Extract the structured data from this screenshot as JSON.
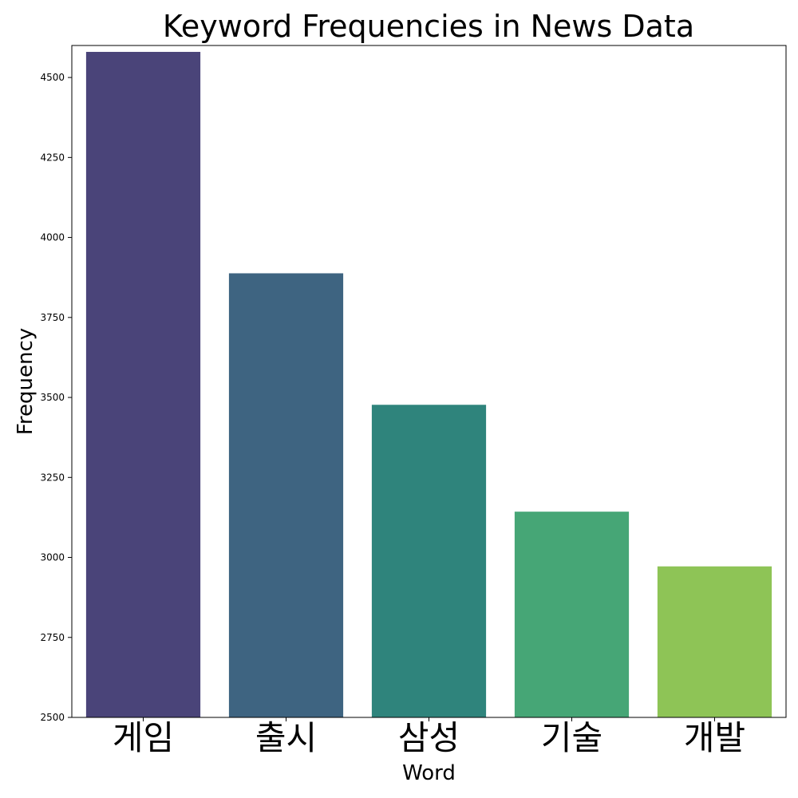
{
  "chart_data": {
    "type": "bar",
    "title": "Keyword Frequencies in News Data",
    "xlabel": "Word",
    "ylabel": "Frequency",
    "categories": [
      "게임",
      "출시",
      "삼성",
      "기술",
      "개발"
    ],
    "values": [
      4580,
      3888,
      3477,
      3143,
      2972
    ],
    "colors": [
      "#4a4479",
      "#3e6481",
      "#2f847c",
      "#46a676",
      "#8ec456"
    ],
    "ylim": [
      2500,
      4600
    ],
    "yticks": [
      2500,
      2750,
      3000,
      3250,
      3500,
      3750,
      4000,
      4250,
      4500
    ],
    "grid": false,
    "legend": "none"
  }
}
